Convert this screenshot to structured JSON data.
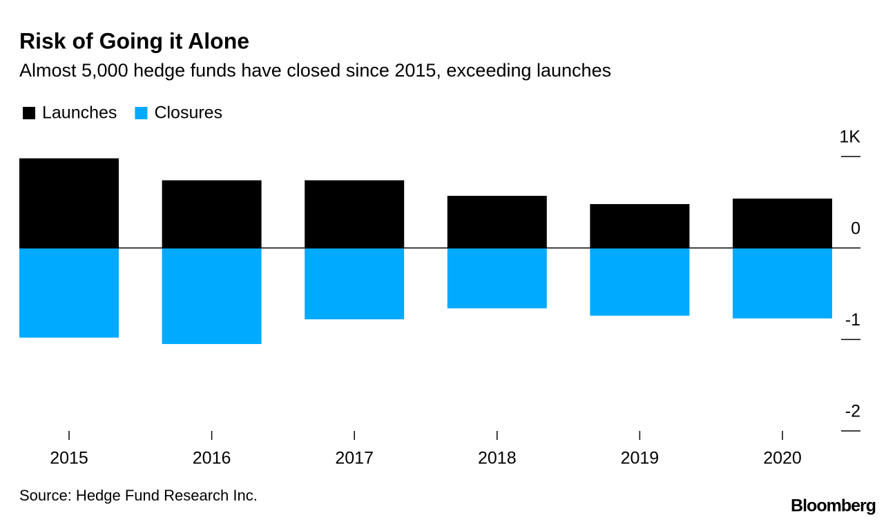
{
  "chart_data": {
    "type": "bar",
    "title": "Risk of Going it Alone",
    "subtitle": "Almost 5,000 hedge funds have closed since 2015, exceeding launches",
    "categories": [
      "2015",
      "2016",
      "2017",
      "2018",
      "2019",
      "2020"
    ],
    "series": [
      {
        "name": "Launches",
        "color": "#000000",
        "values": [
          0.98,
          0.74,
          0.74,
          0.57,
          0.48,
          0.54
        ]
      },
      {
        "name": "Closures",
        "color": "#00aaff",
        "values": [
          -0.98,
          -1.05,
          -0.78,
          -0.66,
          -0.74,
          -0.77
        ]
      }
    ],
    "ylim": [
      -2,
      1
    ],
    "yticks": [
      {
        "value": 1,
        "label": "1K"
      },
      0,
      -1,
      -2
    ],
    "legend": "top-left",
    "source": "Source: Hedge Fund Research Inc.",
    "brand": "Bloomberg"
  }
}
